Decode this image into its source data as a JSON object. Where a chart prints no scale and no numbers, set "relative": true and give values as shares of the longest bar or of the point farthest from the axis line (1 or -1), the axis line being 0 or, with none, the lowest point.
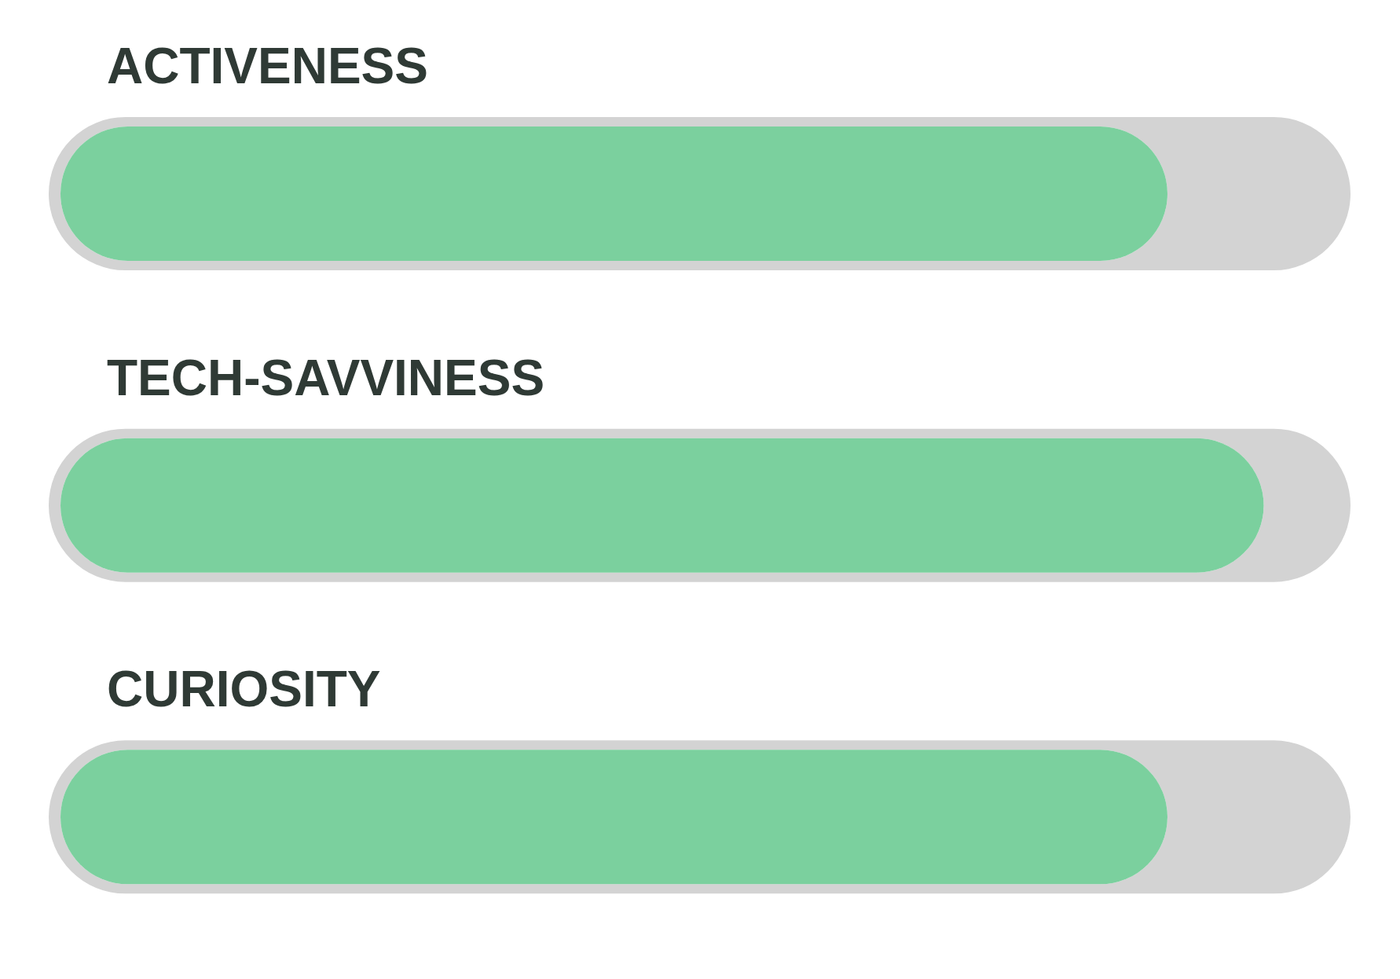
{
  "chart_data": {
    "type": "bar",
    "orientation": "horizontal",
    "relative": true,
    "categories": [
      "ACTIVENESS",
      "TECH-SAVVINESS",
      "CURIOSITY"
    ],
    "values": [
      0.92,
      1,
      0.92
    ],
    "color": "#7bd09e"
  }
}
